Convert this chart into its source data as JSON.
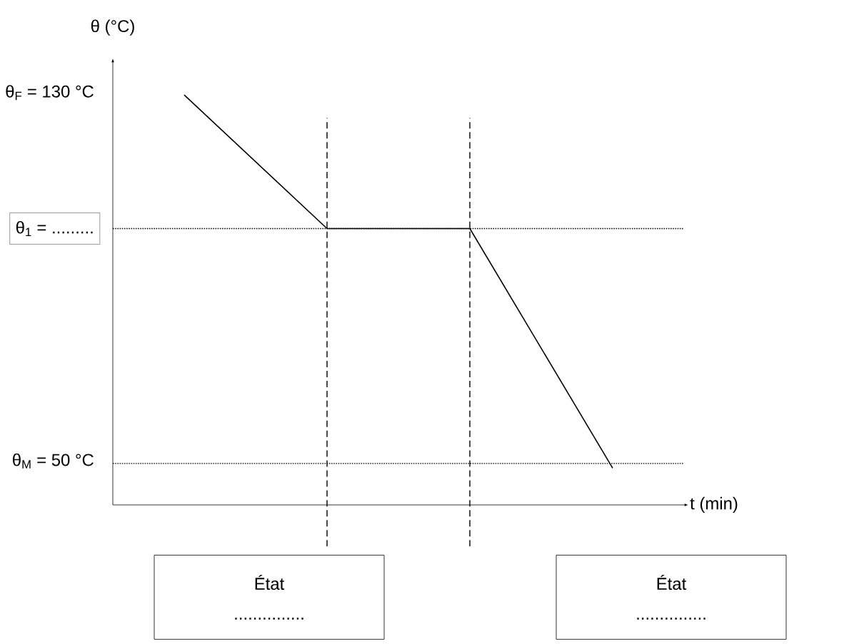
{
  "chart_data": {
    "type": "line",
    "xlabel": "t (min)",
    "ylabel": "θ (°C)",
    "categories": [
      null,
      null,
      null,
      null
    ],
    "values": [
      130,
      101,
      101,
      49
    ],
    "color": "#000000",
    "line_style": "solid",
    "ylim": [
      41,
      137
    ],
    "yticks": [
      {
        "value": 130,
        "label": "θ$_{F}$ = 130 °C"
      },
      {
        "value": 50,
        "label": "θ$_{M}$ = 50 °C"
      }
    ],
    "tick_labels": "y",
    "ref_lines": [
      {
        "axis": "y",
        "value": 101,
        "label": "θ$_{1}$ = .........",
        "line_style": "dotted",
        "color": "#000000"
      },
      {
        "axis": "y",
        "value": 50,
        "line_style": "dotted",
        "color": "#000000"
      }
    ],
    "annotations": [
      "État",
      "...............",
      "État",
      "..............."
    ]
  }
}
